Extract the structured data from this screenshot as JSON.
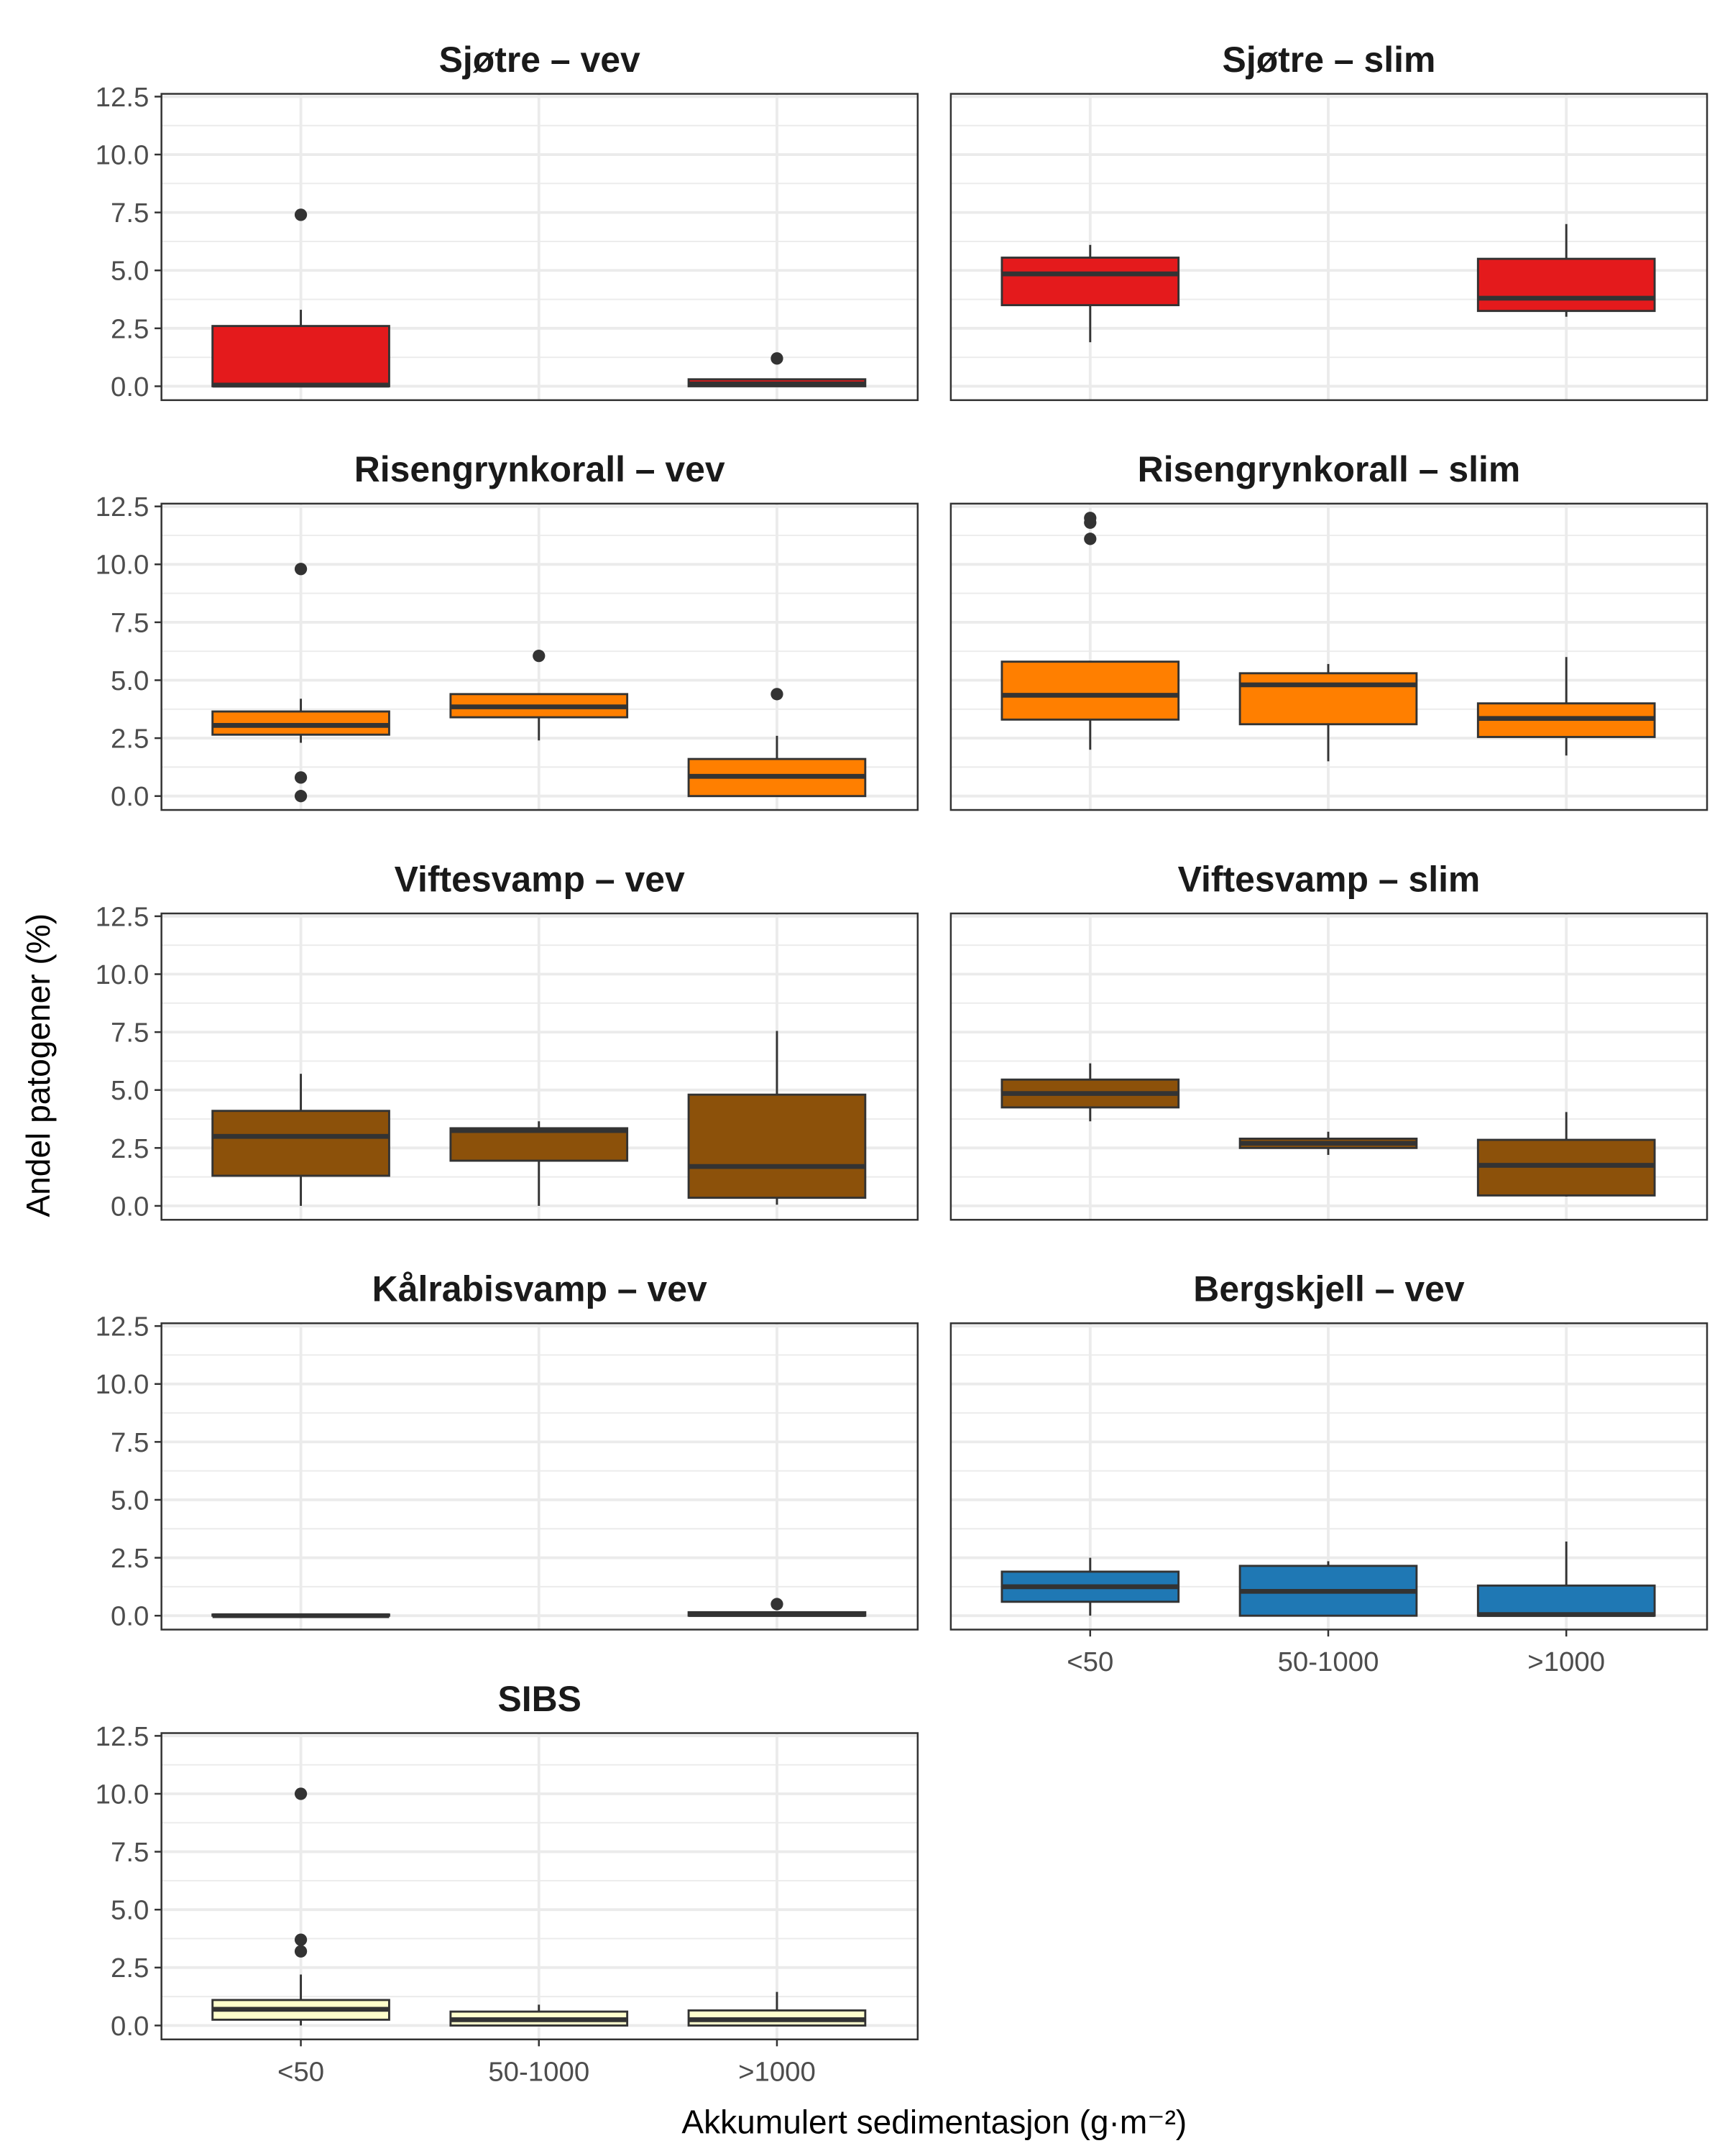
{
  "chart_data": {
    "type": "boxplot",
    "xlabel": "Akkumulert sedimentasjon (g·m⁻²)",
    "ylabel": "Andel patogener (%)",
    "categories": [
      "<50",
      "50-1000",
      ">1000"
    ],
    "ylim": [
      -0.6,
      12.62
    ],
    "yticks": [
      "0.0",
      "2.5",
      "5.0",
      "7.5",
      "10.0",
      "12.5"
    ],
    "grid": true,
    "box_stats_order": [
      "lower_whisker",
      "q1",
      "median",
      "q3",
      "upper_whisker"
    ],
    "panels": [
      {
        "title": "Sjøtre – vev",
        "color": "#E41A1C",
        "boxes": [
          {
            "category": "<50",
            "stats": [
              0,
              0,
              0.05,
              2.6,
              3.3
            ],
            "outliers": [
              7.4
            ]
          },
          {
            "category": ">1000",
            "stats": [
              0,
              0,
              0.1,
              0.3,
              0.3
            ],
            "outliers": [
              1.2
            ]
          }
        ]
      },
      {
        "title": "Sjøtre – slim",
        "color": "#E41A1C",
        "boxes": [
          {
            "category": "<50",
            "stats": [
              1.9,
              3.5,
              4.85,
              5.55,
              6.1
            ],
            "outliers": []
          },
          {
            "category": ">1000",
            "stats": [
              3.0,
              3.25,
              3.8,
              5.5,
              7.0
            ],
            "outliers": []
          }
        ]
      },
      {
        "title": "Risengrynkorall – vev",
        "color": "#FF7F00",
        "boxes": [
          {
            "category": "<50",
            "stats": [
              2.3,
              2.65,
              3.05,
              3.65,
              4.2
            ],
            "outliers": [
              9.8,
              0.8,
              0
            ]
          },
          {
            "category": "50-1000",
            "stats": [
              2.4,
              3.4,
              3.85,
              4.4,
              4.4
            ],
            "outliers": [
              6.05
            ]
          },
          {
            "category": ">1000",
            "stats": [
              0,
              0,
              0.85,
              1.6,
              2.6
            ],
            "outliers": [
              4.4
            ]
          }
        ]
      },
      {
        "title": "Risengrynkorall – slim",
        "color": "#FF7F00",
        "boxes": [
          {
            "category": "<50",
            "stats": [
              2.0,
              3.3,
              4.35,
              5.8,
              5.8
            ],
            "outliers": [
              11.1,
              11.8,
              12.0
            ]
          },
          {
            "category": "50-1000",
            "stats": [
              1.5,
              3.1,
              4.8,
              5.3,
              5.7
            ],
            "outliers": []
          },
          {
            "category": ">1000",
            "stats": [
              1.75,
              2.55,
              3.35,
              4.0,
              6.0
            ],
            "outliers": []
          }
        ]
      },
      {
        "title": "Viftesvamp – vev",
        "color": "#8C510A",
        "boxes": [
          {
            "category": "<50",
            "stats": [
              0,
              1.3,
              3.0,
              4.1,
              5.7
            ],
            "outliers": []
          },
          {
            "category": "50-1000",
            "stats": [
              0,
              1.95,
              3.25,
              3.35,
              3.65
            ],
            "outliers": []
          },
          {
            "category": ">1000",
            "stats": [
              0.05,
              0.35,
              1.7,
              4.8,
              7.55
            ],
            "outliers": []
          }
        ]
      },
      {
        "title": "Viftesvamp – slim",
        "color": "#8C510A",
        "boxes": [
          {
            "category": "<50",
            "stats": [
              3.65,
              4.25,
              4.85,
              5.45,
              6.15
            ],
            "outliers": []
          },
          {
            "category": "50-1000",
            "stats": [
              2.2,
              2.5,
              2.7,
              2.9,
              3.2
            ],
            "outliers": []
          },
          {
            "category": ">1000",
            "stats": [
              0.4,
              0.45,
              1.75,
              2.85,
              4.05
            ],
            "outliers": []
          }
        ]
      },
      {
        "title": "Kålrabisvamp – vev",
        "color": "#8C510A",
        "boxes": [
          {
            "category": "<50",
            "stats": [
              0,
              0,
              0,
              0.05,
              0.05
            ],
            "outliers": []
          },
          {
            "category": ">1000",
            "stats": [
              0,
              0,
              0.05,
              0.15,
              0.15
            ],
            "outliers": [
              0.5
            ]
          }
        ]
      },
      {
        "title": "Bergskjell – vev",
        "color": "#1F78B4",
        "boxes": [
          {
            "category": "<50",
            "stats": [
              0,
              0.6,
              1.25,
              1.9,
              2.5
            ],
            "outliers": []
          },
          {
            "category": "50-1000",
            "stats": [
              0,
              0,
              1.05,
              2.15,
              2.35
            ],
            "outliers": []
          },
          {
            "category": ">1000",
            "stats": [
              0,
              0,
              0.05,
              1.3,
              3.2
            ],
            "outliers": []
          }
        ]
      },
      {
        "title": "SIBS",
        "color": "#FFFFCC",
        "boxes": [
          {
            "category": "<50",
            "stats": [
              0,
              0.25,
              0.7,
              1.1,
              2.2
            ],
            "outliers": [
              10.0,
              3.7,
              3.2
            ]
          },
          {
            "category": "50-1000",
            "stats": [
              0,
              0,
              0.25,
              0.6,
              0.9
            ],
            "outliers": []
          },
          {
            "category": ">1000",
            "stats": [
              0,
              0,
              0.25,
              0.65,
              1.45
            ],
            "outliers": []
          }
        ]
      }
    ]
  }
}
